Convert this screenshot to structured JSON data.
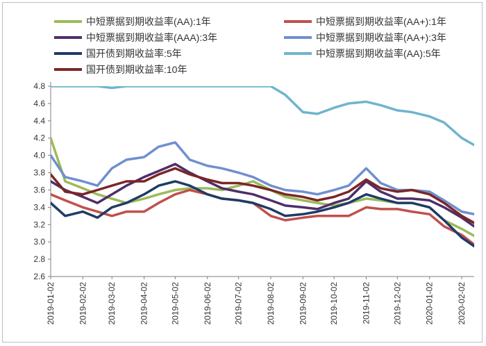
{
  "chart_data": {
    "type": "line",
    "title": "",
    "xlabel": "",
    "ylabel": "",
    "ylim": [
      2.6,
      4.8
    ],
    "y_ticks": [
      "2.6",
      "2.8",
      "3.0",
      "3.2",
      "3.4",
      "3.6",
      "3.8",
      "4.0",
      "4.2",
      "4.4",
      "4.6",
      "4.8"
    ],
    "x_ticks": [
      "2019-01-02",
      "2019-02-02",
      "2019-03-02",
      "2019-04-02",
      "2019-05-02",
      "2019-06-02",
      "2019-07-02",
      "2019-08-02",
      "2019-09-02",
      "2019-10-02",
      "2019-11-02",
      "2019-12-02",
      "2020-01-02",
      "2020-02-02"
    ],
    "grid": false,
    "legend_position": "top",
    "x": [
      "2019-01-02",
      "2019-01-16",
      "2019-02-02",
      "2019-02-16",
      "2019-03-02",
      "2019-03-16",
      "2019-04-02",
      "2019-04-16",
      "2019-05-02",
      "2019-05-16",
      "2019-06-02",
      "2019-06-16",
      "2019-07-02",
      "2019-07-16",
      "2019-08-02",
      "2019-08-16",
      "2019-09-02",
      "2019-09-16",
      "2019-10-02",
      "2019-10-16",
      "2019-11-02",
      "2019-11-16",
      "2019-12-02",
      "2019-12-16",
      "2020-01-02",
      "2020-01-16",
      "2020-02-02",
      "2020-02-14"
    ],
    "series": [
      {
        "name": "中短票据到期收益率(AA):1年",
        "color": "#9bbb59",
        "values": [
          4.2,
          3.7,
          3.62,
          3.55,
          3.5,
          3.45,
          3.5,
          3.55,
          3.6,
          3.62,
          3.62,
          3.6,
          3.65,
          3.7,
          3.6,
          3.52,
          3.48,
          3.45,
          3.42,
          3.45,
          3.5,
          3.48,
          3.45,
          3.45,
          3.4,
          3.25,
          3.15,
          3.07
        ]
      },
      {
        "name": "中短票据到期收益率(AA+):1年",
        "color": "#c0504d",
        "values": [
          3.55,
          3.48,
          3.4,
          3.35,
          3.3,
          3.35,
          3.35,
          3.45,
          3.55,
          3.6,
          3.55,
          3.5,
          3.48,
          3.45,
          3.3,
          3.25,
          3.28,
          3.3,
          3.3,
          3.3,
          3.4,
          3.38,
          3.38,
          3.35,
          3.32,
          3.18,
          3.08,
          2.97
        ]
      },
      {
        "name": "中短票据到期收益率(AAA):3年",
        "color": "#4f2e69",
        "values": [
          3.7,
          3.6,
          3.52,
          3.45,
          3.55,
          3.65,
          3.75,
          3.82,
          3.9,
          3.8,
          3.7,
          3.62,
          3.58,
          3.55,
          3.48,
          3.42,
          3.4,
          3.38,
          3.45,
          3.5,
          3.7,
          3.58,
          3.5,
          3.5,
          3.48,
          3.4,
          3.28,
          3.18
        ]
      },
      {
        "name": "中短票据到期收益率(AA+):3年",
        "color": "#6f8fcf",
        "values": [
          4.0,
          3.75,
          3.7,
          3.65,
          3.85,
          3.95,
          3.98,
          4.1,
          4.15,
          3.95,
          3.88,
          3.85,
          3.8,
          3.75,
          3.65,
          3.6,
          3.58,
          3.55,
          3.6,
          3.65,
          3.85,
          3.68,
          3.6,
          3.6,
          3.58,
          3.48,
          3.35,
          3.32
        ]
      },
      {
        "name": "国开债到期收益率:5年",
        "color": "#1f3b66",
        "values": [
          3.45,
          3.3,
          3.35,
          3.28,
          3.4,
          3.45,
          3.55,
          3.65,
          3.7,
          3.65,
          3.55,
          3.5,
          3.48,
          3.45,
          3.38,
          3.3,
          3.32,
          3.35,
          3.4,
          3.45,
          3.55,
          3.5,
          3.45,
          3.45,
          3.4,
          3.25,
          3.05,
          2.95
        ]
      },
      {
        "name": "中短票据到期收益率(AA):5年",
        "color": "#6fb4cc",
        "values": [
          4.8,
          4.8,
          4.8,
          4.8,
          4.78,
          4.8,
          4.8,
          4.8,
          4.8,
          4.8,
          4.8,
          4.8,
          4.8,
          4.8,
          4.8,
          4.7,
          4.5,
          4.48,
          4.55,
          4.6,
          4.62,
          4.58,
          4.52,
          4.5,
          4.45,
          4.38,
          4.2,
          4.12
        ]
      },
      {
        "name": "国开债到期收益率:10年",
        "color": "#7b2626",
        "values": [
          3.78,
          3.58,
          3.55,
          3.6,
          3.65,
          3.7,
          3.7,
          3.78,
          3.85,
          3.78,
          3.72,
          3.68,
          3.68,
          3.65,
          3.6,
          3.55,
          3.52,
          3.48,
          3.52,
          3.58,
          3.72,
          3.62,
          3.58,
          3.6,
          3.55,
          3.45,
          3.3,
          3.22
        ]
      }
    ]
  }
}
